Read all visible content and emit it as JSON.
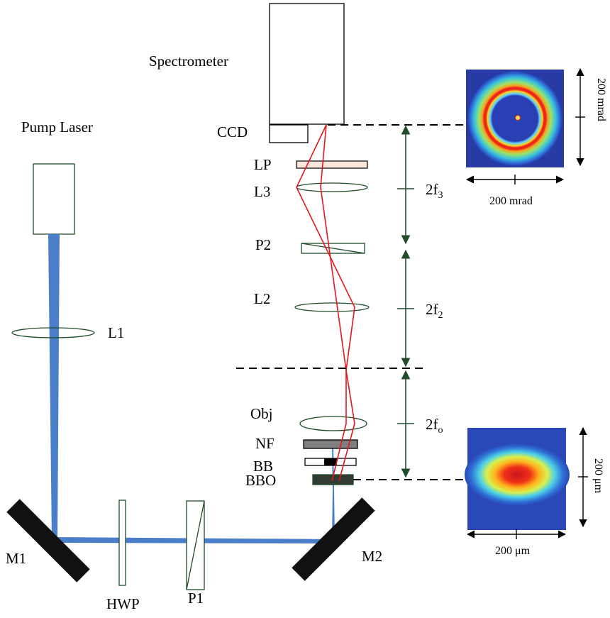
{
  "labels": {
    "spectrometer": "Spectrometer",
    "pump_laser": "Pump Laser",
    "ccd": "CCD",
    "lp": "LP",
    "l3": "L3",
    "p2": "P2",
    "l2": "L2",
    "l1": "L1",
    "obj": "Obj",
    "nf": "NF",
    "bb": "BB",
    "bbo": "BBO",
    "m1": "M1",
    "m2": "M2",
    "hwp": "HWP",
    "p1": "P1"
  },
  "distances": {
    "f3": {
      "base": "2f",
      "sub": "3"
    },
    "f2": {
      "base": "2f",
      "sub": "2"
    },
    "fo": {
      "base": "2f",
      "sub": "o"
    }
  },
  "insets": {
    "far_field": {
      "horizontal_label": "200 mrad",
      "vertical_label": "200 mrad"
    },
    "near_field": {
      "horizontal_label": "200 μm",
      "vertical_label": "200 μm"
    }
  },
  "colors": {
    "pump_beam": "#4a7ec8",
    "signal_rays": "#e3161d",
    "optics_outline": "#1f4d2a",
    "mirror": "#111111"
  }
}
